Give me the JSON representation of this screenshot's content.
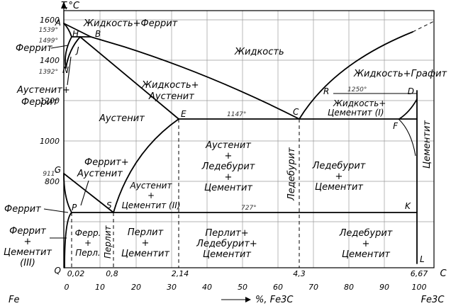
{
  "title": "",
  "axes": {
    "y_label": "T,°C",
    "y_ticks": [
      "1600",
      "1400",
      "1200",
      "1000",
      "800"
    ],
    "x_ticks": [
      "0",
      "10",
      "20",
      "30",
      "40",
      "50",
      "60",
      "70",
      "80",
      "90",
      "100"
    ],
    "x_left": "Fe",
    "x_right": "Fe3C",
    "x_axis_label": "%, Fe3C",
    "c_values": [
      "0,02",
      "0,8",
      "2,14",
      "4,3",
      "6,67"
    ],
    "c_axis_letter": "C"
  },
  "points": {
    "A": "A",
    "B": "B",
    "H": "H",
    "J": "J",
    "N": "N",
    "E": "E",
    "C": "C",
    "D": "D",
    "F": "F",
    "G": "G",
    "S": "S",
    "K": "K",
    "P": "P",
    "Q": "Q",
    "L": "L",
    "R": "R"
  },
  "temperatures": {
    "t1539": "1539°",
    "t1499": "1499°",
    "t1392": "1392°",
    "t1250": "1250°",
    "t1147": "1147°",
    "t911": "911°",
    "t727": "727°"
  },
  "regions": {
    "liquid_ferrite": "Жидкость+Феррит",
    "ferrite_top": "Феррит",
    "liquid": "Жидкость",
    "liquid_graphite": "Жидкость+Графит",
    "austenite_ferrite_1": "Аустенит+",
    "austenite_ferrite_2": "Феррит",
    "liquid_austenite_1": "Жидкость+",
    "liquid_austenite_2": "Аустенит",
    "liquid_cementite_1": "Жидкость+",
    "liquid_cementite_2": "Цементит (I)",
    "austenite": "Аустенит",
    "ferrite_austenite_1": "Феррит+",
    "ferrite_austenite_2": "Аустенит",
    "aus_led_cem_1": "Аустенит",
    "aus_led_cem_2": "+",
    "aus_led_cem_3": "Ледебурит",
    "aus_led_cem_4": "+",
    "aus_led_cem_5": "Цементит",
    "ledeburite_vertical": "Ледебурит",
    "led_cem_1": "Ледебурит",
    "led_cem_2": "+",
    "led_cem_3": "Цементит",
    "cementite_vertical": "Цементит",
    "aus_cem2_1": "Аустенит",
    "aus_cem2_2": "+",
    "aus_cem2_3": "Цементит (II)",
    "ferrite_mid": "Феррит",
    "ferrite_cem3_1": "Феррит",
    "ferrite_cem3_2": "+",
    "ferrite_cem3_3": "Цементит",
    "ferrite_cem3_4": "(III)",
    "ferr_perl_1": "Ферр.",
    "ferr_perl_2": "+",
    "ferr_perl_3": "Перл.",
    "pearlite_vertical": "Перлит",
    "perl_cem_1": "Перлит",
    "perl_cem_2": "+",
    "perl_cem_3": "Цементит",
    "perl_led_cem_1": "Перлит+",
    "perl_led_cem_2": "Ледебурит+",
    "perl_led_cem_3": "Цементит",
    "led_cem_low_1": "Ледебурит",
    "led_cem_low_2": "+",
    "led_cem_low_3": "Цементит"
  }
}
